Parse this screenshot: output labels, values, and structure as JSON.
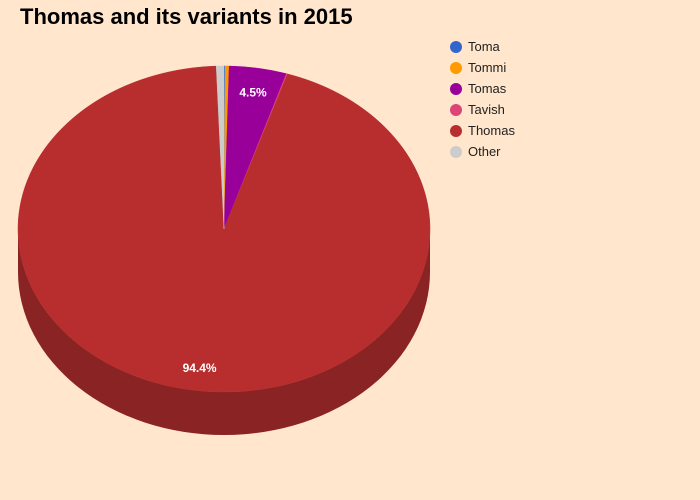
{
  "chart_data": {
    "type": "pie",
    "style": "3d",
    "title": "Thomas and its variants in 2015",
    "start_angle_deg": 0,
    "direction": "clockwise",
    "slices": [
      {
        "label": "Toma",
        "value": 0.1,
        "color": "#3366cc",
        "data_label": ""
      },
      {
        "label": "Tommi",
        "value": 0.3,
        "color": "#ff9900",
        "data_label": ""
      },
      {
        "label": "Tomas",
        "value": 4.5,
        "color": "#990099",
        "data_label": "4.5%"
      },
      {
        "label": "Tavish",
        "value": 0.1,
        "color": "#dd4477",
        "data_label": ""
      },
      {
        "label": "Thomas",
        "value": 94.4,
        "color": "#b82e2e",
        "data_label": "94.4%"
      },
      {
        "label": "Other",
        "value": 0.6,
        "color": "#cccccc",
        "data_label": ""
      }
    ],
    "legend_position": "right"
  }
}
